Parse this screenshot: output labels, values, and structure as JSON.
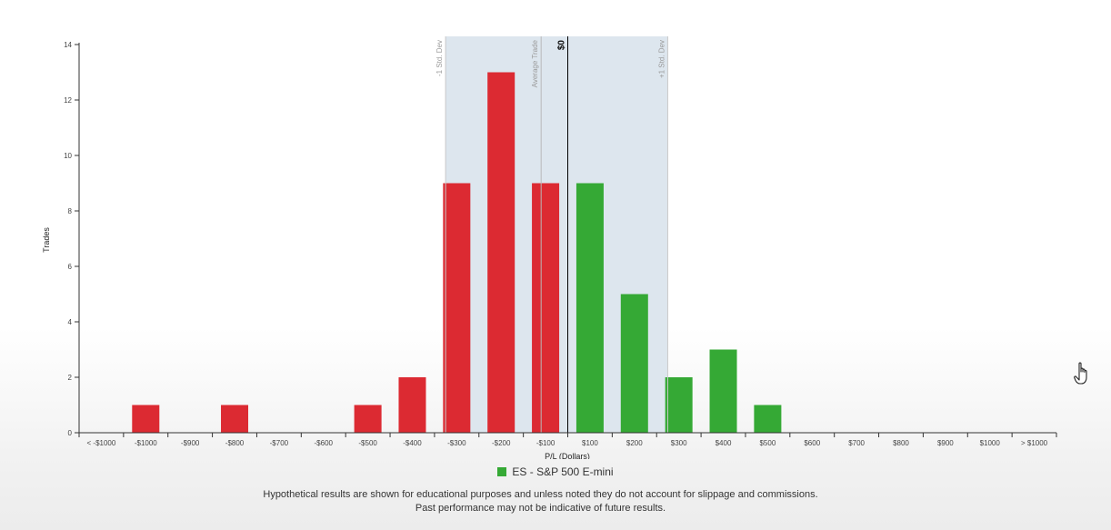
{
  "chart_data": {
    "type": "bar",
    "title": "",
    "xlabel": "P/L (Dollars)",
    "ylabel": "Trades",
    "ylim": [
      0,
      14
    ],
    "yticks": [
      0,
      2,
      4,
      6,
      8,
      10,
      12,
      14
    ],
    "grid": false,
    "categories": [
      "< -$1000",
      "-$1000",
      "-$900",
      "-$800",
      "-$700",
      "-$600",
      "-$500",
      "-$400",
      "-$300",
      "-$200",
      "-$100",
      "$100",
      "$200",
      "$300",
      "$400",
      "$500",
      "$600",
      "$700",
      "$800",
      "$900",
      "$1000",
      "> $1000"
    ],
    "values": [
      0,
      1,
      0,
      1,
      0,
      0,
      1,
      2,
      9,
      13,
      9,
      9,
      5,
      2,
      3,
      1,
      0,
      0,
      0,
      0,
      0,
      0
    ],
    "colors": {
      "loss": "#dc2a32",
      "profit": "#35a935",
      "std_band": "#dde6ee",
      "average_line": "#b9b9b9",
      "zero_line": "#000000"
    },
    "std_band": {
      "lower_label": "-1 Std. Dev",
      "upper_label": "+1 Std. Dev",
      "lower_value": -275,
      "upper_value": 225
    },
    "average_trade": {
      "label": "Average Trade",
      "value": -60
    },
    "zero_line": {
      "label": "$0",
      "value": 0
    },
    "legend": {
      "position": "bottom-center",
      "entries": [
        {
          "name": "ES - S&P 500 E-mini",
          "color": "#35a935"
        }
      ]
    }
  },
  "footer": {
    "line1": "Hypothetical results are shown for educational purposes and unless noted they do not account for slippage and commissions.",
    "line2": "Past performance may not be indicative of future results."
  },
  "icons": {
    "cursor": "hand-pointer-icon"
  }
}
